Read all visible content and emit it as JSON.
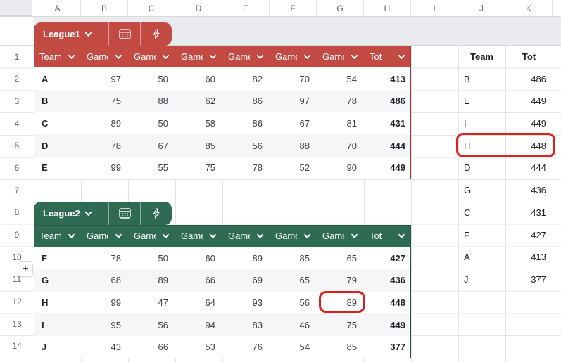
{
  "grid": {
    "column_letters": [
      "A",
      "B",
      "C",
      "D",
      "E",
      "F",
      "G",
      "H",
      "I",
      "J",
      "K"
    ],
    "row_numbers": [
      "1",
      "2",
      "3",
      "4",
      "5",
      "6",
      "7",
      "8",
      "9",
      "10",
      "11",
      "12",
      "13",
      "14"
    ]
  },
  "table1": {
    "name": "League1",
    "theme_color": "#c24a42",
    "border_color": "#a13b33",
    "headers": [
      "Team",
      "Game",
      "Game",
      "Game",
      "Game",
      "Game",
      "Game",
      "Tot"
    ],
    "rows": [
      {
        "team": "A",
        "games": [
          97,
          50,
          60,
          82,
          70,
          54
        ],
        "total": 413
      },
      {
        "team": "B",
        "games": [
          75,
          88,
          62,
          86,
          97,
          78
        ],
        "total": 486
      },
      {
        "team": "C",
        "games": [
          89,
          50,
          58,
          86,
          67,
          81
        ],
        "total": 431
      },
      {
        "team": "D",
        "games": [
          78,
          67,
          85,
          56,
          88,
          70
        ],
        "total": 444
      },
      {
        "team": "E",
        "games": [
          99,
          55,
          75,
          78,
          52,
          90
        ],
        "total": 449
      }
    ]
  },
  "table2": {
    "name": "League2",
    "theme_color": "#2e6b52",
    "border_color": "#245743",
    "headers": [
      "Team",
      "Game",
      "Game",
      "Game",
      "Game",
      "Game",
      "Game",
      "Tot"
    ],
    "rows": [
      {
        "team": "F",
        "games": [
          78,
          50,
          60,
          89,
          85,
          65
        ],
        "total": 427
      },
      {
        "team": "G",
        "games": [
          68,
          89,
          66,
          69,
          65,
          79
        ],
        "total": 436
      },
      {
        "team": "H",
        "games": [
          99,
          47,
          64,
          93,
          56,
          89
        ],
        "total": 448
      },
      {
        "team": "I",
        "games": [
          95,
          56,
          94,
          83,
          46,
          75
        ],
        "total": 449
      },
      {
        "team": "J",
        "games": [
          43,
          66,
          53,
          76,
          54,
          85
        ],
        "total": 377
      }
    ]
  },
  "side_list": {
    "headers": [
      "Team",
      "Tot"
    ],
    "rows": [
      {
        "team": "B",
        "total": 486
      },
      {
        "team": "E",
        "total": 449
      },
      {
        "team": "I",
        "total": 449
      },
      {
        "team": "H",
        "total": 448
      },
      {
        "team": "D",
        "total": 444
      },
      {
        "team": "G",
        "total": 436
      },
      {
        "team": "C",
        "total": 431
      },
      {
        "team": "F",
        "total": 427
      },
      {
        "team": "A",
        "total": 413
      },
      {
        "team": "J",
        "total": 377
      }
    ]
  },
  "annotations": {
    "color": "#e01e1e",
    "circled_cell_value": "89",
    "circled_row": "H 448"
  },
  "controls": {
    "add_rows_label": "+"
  }
}
